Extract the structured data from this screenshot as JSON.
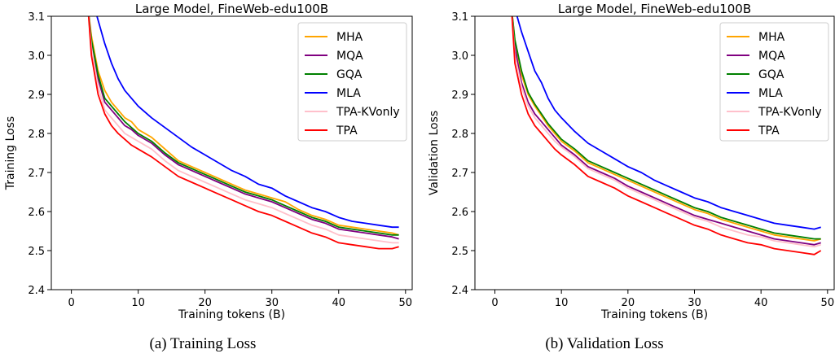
{
  "captions": [
    "(a)  Training Loss",
    "(b)  Validation Loss"
  ],
  "chart_data": [
    {
      "type": "line",
      "title": "Large Model, FineWeb-edu100B",
      "xlabel": "Training tokens (B)",
      "ylabel": "Training Loss",
      "xlim": [
        -3,
        51
      ],
      "ylim": [
        2.4,
        3.1
      ],
      "xticks": [
        0,
        10,
        20,
        30,
        40,
        50
      ],
      "yticks": [
        2.4,
        2.5,
        2.6,
        2.7,
        2.8,
        2.9,
        3.0,
        3.1
      ],
      "legend_position": "top-right",
      "grid": false,
      "series": [
        {
          "name": "MHA",
          "color": "#ffa500",
          "x": [
            2.5,
            3,
            4,
            5,
            6,
            7,
            8,
            9,
            10,
            12,
            14,
            16,
            18,
            20,
            22,
            24,
            26,
            28,
            30,
            32,
            34,
            36,
            38,
            40,
            42,
            44,
            46,
            48,
            49
          ],
          "y": [
            3.12,
            3.05,
            2.96,
            2.91,
            2.88,
            2.86,
            2.84,
            2.83,
            2.81,
            2.79,
            2.76,
            2.73,
            2.715,
            2.7,
            2.685,
            2.67,
            2.655,
            2.645,
            2.635,
            2.625,
            2.605,
            2.59,
            2.58,
            2.565,
            2.56,
            2.555,
            2.55,
            2.545,
            2.54
          ]
        },
        {
          "name": "MQA",
          "color": "#800080",
          "x": [
            2.5,
            3,
            4,
            5,
            6,
            7,
            8,
            9,
            10,
            12,
            14,
            16,
            18,
            20,
            22,
            24,
            26,
            28,
            30,
            32,
            34,
            36,
            38,
            40,
            42,
            44,
            46,
            48,
            49
          ],
          "y": [
            3.12,
            3.03,
            2.94,
            2.88,
            2.86,
            2.84,
            2.82,
            2.81,
            2.795,
            2.775,
            2.745,
            2.72,
            2.705,
            2.69,
            2.675,
            2.66,
            2.645,
            2.635,
            2.625,
            2.61,
            2.595,
            2.58,
            2.57,
            2.555,
            2.55,
            2.545,
            2.54,
            2.535,
            2.53
          ]
        },
        {
          "name": "GQA",
          "color": "#008000",
          "x": [
            2.5,
            3,
            4,
            5,
            6,
            7,
            8,
            9,
            10,
            12,
            14,
            16,
            18,
            20,
            22,
            24,
            26,
            28,
            30,
            32,
            34,
            36,
            38,
            40,
            42,
            44,
            46,
            48,
            49
          ],
          "y": [
            3.12,
            3.04,
            2.95,
            2.89,
            2.87,
            2.85,
            2.83,
            2.815,
            2.8,
            2.78,
            2.75,
            2.725,
            2.71,
            2.695,
            2.68,
            2.665,
            2.65,
            2.64,
            2.63,
            2.615,
            2.6,
            2.585,
            2.575,
            2.56,
            2.555,
            2.55,
            2.545,
            2.54,
            2.54
          ]
        },
        {
          "name": "MLA",
          "color": "#0000ff",
          "x": [
            3.5,
            4,
            5,
            6,
            7,
            8,
            9,
            10,
            12,
            14,
            16,
            18,
            20,
            22,
            24,
            26,
            28,
            30,
            32,
            34,
            36,
            38,
            40,
            42,
            44,
            46,
            48,
            49
          ],
          "y": [
            3.12,
            3.09,
            3.03,
            2.98,
            2.94,
            2.91,
            2.89,
            2.87,
            2.84,
            2.815,
            2.79,
            2.765,
            2.745,
            2.725,
            2.705,
            2.69,
            2.67,
            2.66,
            2.64,
            2.625,
            2.61,
            2.6,
            2.585,
            2.575,
            2.57,
            2.565,
            2.56,
            2.56
          ]
        },
        {
          "name": "TPA-KVonly",
          "color": "#ffc0cb",
          "x": [
            2.5,
            3,
            4,
            5,
            6,
            7,
            8,
            9,
            10,
            12,
            14,
            16,
            18,
            20,
            22,
            24,
            26,
            28,
            30,
            32,
            34,
            36,
            38,
            40,
            42,
            44,
            46,
            48,
            49
          ],
          "y": [
            3.12,
            3.02,
            2.92,
            2.86,
            2.84,
            2.82,
            2.8,
            2.79,
            2.78,
            2.76,
            2.73,
            2.705,
            2.69,
            2.675,
            2.66,
            2.645,
            2.63,
            2.62,
            2.61,
            2.595,
            2.58,
            2.565,
            2.555,
            2.54,
            2.535,
            2.53,
            2.525,
            2.52,
            2.52
          ]
        },
        {
          "name": "TPA",
          "color": "#ff0000",
          "x": [
            2.5,
            3,
            4,
            5,
            6,
            7,
            8,
            9,
            10,
            12,
            14,
            16,
            18,
            20,
            22,
            24,
            26,
            28,
            30,
            32,
            34,
            36,
            38,
            40,
            42,
            44,
            46,
            48,
            49
          ],
          "y": [
            3.12,
            3.0,
            2.9,
            2.85,
            2.82,
            2.8,
            2.785,
            2.77,
            2.76,
            2.74,
            2.715,
            2.69,
            2.675,
            2.66,
            2.645,
            2.63,
            2.615,
            2.6,
            2.59,
            2.575,
            2.56,
            2.545,
            2.535,
            2.52,
            2.515,
            2.51,
            2.505,
            2.505,
            2.51
          ]
        }
      ]
    },
    {
      "type": "line",
      "title": "Large Model, FineWeb-edu100B",
      "xlabel": "Training tokens (B)",
      "ylabel": "Validation Loss",
      "xlim": [
        -3,
        51
      ],
      "ylim": [
        2.4,
        3.1
      ],
      "xticks": [
        0,
        10,
        20,
        30,
        40,
        50
      ],
      "yticks": [
        2.4,
        2.5,
        2.6,
        2.7,
        2.8,
        2.9,
        3.0,
        3.1
      ],
      "legend_position": "top-right",
      "grid": false,
      "series": [
        {
          "name": "MHA",
          "color": "#ffa500",
          "x": [
            2.5,
            3,
            4,
            5,
            6,
            7,
            8,
            9,
            10,
            12,
            14,
            16,
            18,
            20,
            22,
            24,
            26,
            28,
            30,
            32,
            34,
            36,
            38,
            40,
            42,
            44,
            46,
            48,
            49
          ],
          "y": [
            3.12,
            3.04,
            2.95,
            2.9,
            2.87,
            2.845,
            2.82,
            2.8,
            2.78,
            2.755,
            2.725,
            2.71,
            2.695,
            2.68,
            2.665,
            2.65,
            2.635,
            2.62,
            2.605,
            2.595,
            2.58,
            2.57,
            2.56,
            2.55,
            2.54,
            2.535,
            2.53,
            2.525,
            2.53
          ]
        },
        {
          "name": "MQA",
          "color": "#800080",
          "x": [
            2.5,
            3,
            4,
            5,
            6,
            7,
            8,
            9,
            10,
            12,
            14,
            16,
            18,
            20,
            22,
            24,
            26,
            28,
            30,
            32,
            34,
            36,
            38,
            40,
            42,
            44,
            46,
            48,
            49
          ],
          "y": [
            3.12,
            3.02,
            2.93,
            2.88,
            2.85,
            2.83,
            2.81,
            2.79,
            2.77,
            2.745,
            2.715,
            2.7,
            2.685,
            2.665,
            2.65,
            2.635,
            2.62,
            2.605,
            2.59,
            2.58,
            2.57,
            2.56,
            2.55,
            2.54,
            2.53,
            2.525,
            2.52,
            2.515,
            2.52
          ]
        },
        {
          "name": "GQA",
          "color": "#008000",
          "x": [
            2.5,
            3,
            4,
            5,
            6,
            7,
            8,
            9,
            10,
            12,
            14,
            16,
            18,
            20,
            22,
            24,
            26,
            28,
            30,
            32,
            34,
            36,
            38,
            40,
            42,
            44,
            46,
            48,
            49
          ],
          "y": [
            3.12,
            3.04,
            2.96,
            2.905,
            2.875,
            2.85,
            2.825,
            2.805,
            2.785,
            2.76,
            2.73,
            2.715,
            2.7,
            2.685,
            2.67,
            2.655,
            2.64,
            2.625,
            2.61,
            2.6,
            2.585,
            2.575,
            2.565,
            2.555,
            2.545,
            2.54,
            2.535,
            2.53,
            2.53
          ]
        },
        {
          "name": "MLA",
          "color": "#0000ff",
          "x": [
            3,
            4,
            5,
            6,
            7,
            8,
            9,
            10,
            12,
            14,
            16,
            18,
            20,
            22,
            24,
            26,
            28,
            30,
            32,
            34,
            36,
            38,
            40,
            42,
            44,
            46,
            48,
            49
          ],
          "y": [
            3.12,
            3.06,
            3.01,
            2.96,
            2.93,
            2.89,
            2.86,
            2.84,
            2.805,
            2.775,
            2.755,
            2.735,
            2.715,
            2.7,
            2.68,
            2.665,
            2.65,
            2.635,
            2.625,
            2.61,
            2.6,
            2.59,
            2.58,
            2.57,
            2.565,
            2.56,
            2.555,
            2.56
          ]
        },
        {
          "name": "TPA-KVonly",
          "color": "#ffc0cb",
          "x": [
            2.5,
            3,
            4,
            5,
            6,
            7,
            8,
            9,
            10,
            12,
            14,
            16,
            18,
            20,
            22,
            24,
            26,
            28,
            30,
            32,
            34,
            36,
            38,
            40,
            42,
            44,
            46,
            48,
            49
          ],
          "y": [
            3.12,
            3.0,
            2.92,
            2.87,
            2.84,
            2.82,
            2.8,
            2.78,
            2.765,
            2.74,
            2.71,
            2.695,
            2.68,
            2.66,
            2.645,
            2.63,
            2.615,
            2.6,
            2.585,
            2.575,
            2.56,
            2.55,
            2.54,
            2.535,
            2.525,
            2.52,
            2.515,
            2.51,
            2.515
          ]
        },
        {
          "name": "TPA",
          "color": "#ff0000",
          "x": [
            2.5,
            3,
            4,
            5,
            6,
            7,
            8,
            9,
            10,
            12,
            14,
            16,
            18,
            20,
            22,
            24,
            26,
            28,
            30,
            32,
            34,
            36,
            38,
            40,
            42,
            44,
            46,
            48,
            49
          ],
          "y": [
            3.12,
            2.98,
            2.9,
            2.85,
            2.82,
            2.8,
            2.78,
            2.76,
            2.745,
            2.72,
            2.69,
            2.675,
            2.66,
            2.64,
            2.625,
            2.61,
            2.595,
            2.58,
            2.565,
            2.555,
            2.54,
            2.53,
            2.52,
            2.515,
            2.505,
            2.5,
            2.495,
            2.49,
            2.5
          ]
        }
      ]
    }
  ]
}
